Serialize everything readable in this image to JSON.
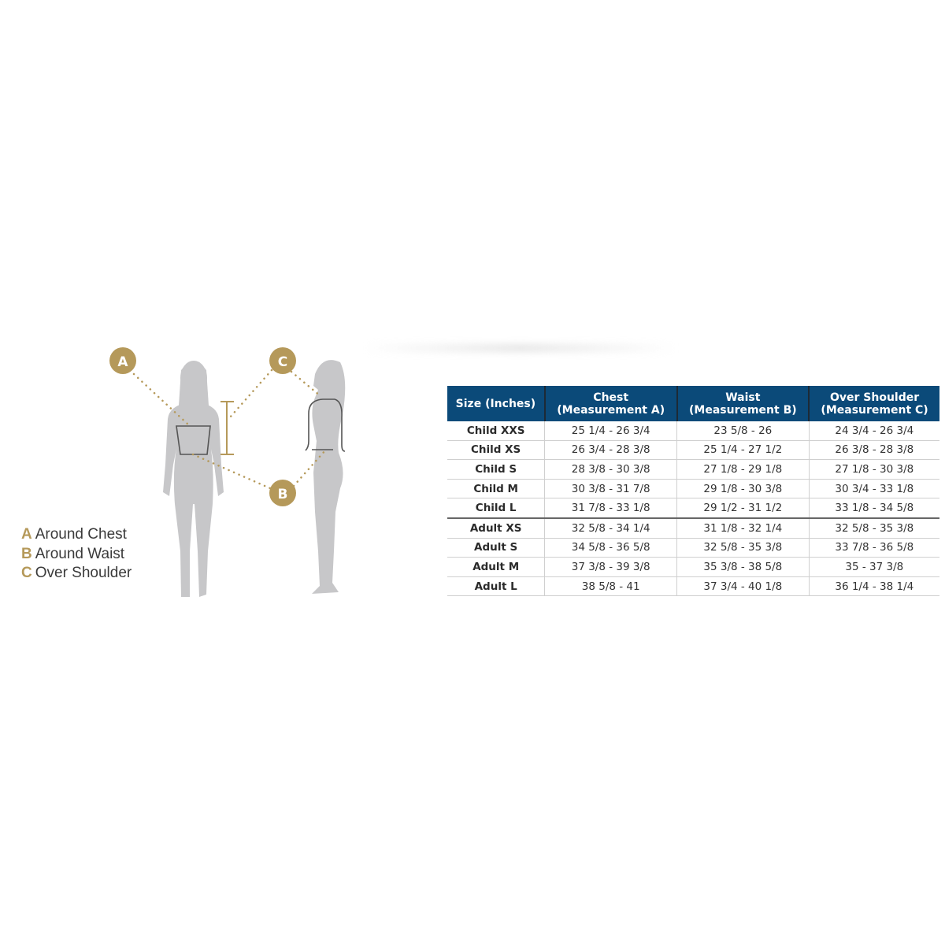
{
  "colors": {
    "header_bg": "#0b4a79",
    "accent_gold": "#b5995a",
    "silhouette": "#c7c7c9"
  },
  "diagram": {
    "markers": [
      "A",
      "B",
      "C"
    ]
  },
  "legend": [
    {
      "key": "A",
      "label": "Around Chest"
    },
    {
      "key": "B",
      "label": "Around Waist"
    },
    {
      "key": "C",
      "label": "Over Shoulder"
    }
  ],
  "table": {
    "headers": [
      {
        "line1": "Size (Inches)",
        "line2": ""
      },
      {
        "line1": "Chest",
        "line2": "(Measurement A)"
      },
      {
        "line1": "Waist",
        "line2": "(Measurement B)"
      },
      {
        "line1": "Over Shoulder",
        "line2": "(Measurement C)"
      }
    ],
    "rows": [
      [
        "Child XXS",
        "25 1/4 - 26 3/4",
        "23 5/8 - 26",
        "24 3/4 - 26 3/4"
      ],
      [
        "Child XS",
        "26 3/4 - 28 3/8",
        "25 1/4 - 27 1/2",
        "26 3/8 - 28 3/8"
      ],
      [
        "Child S",
        "28 3/8 - 30 3/8",
        "27 1/8 - 29 1/8",
        "27 1/8 - 30 3/8"
      ],
      [
        "Child M",
        "30 3/8 - 31 7/8",
        "29 1/8 - 30 3/8",
        "30 3/4 - 33 1/8"
      ],
      [
        "Child L",
        "31 7/8 - 33 1/8",
        "29 1/2 - 31 1/2",
        "33 1/8 - 34 5/8"
      ],
      [
        "Adult XS",
        "32 5/8 - 34 1/4",
        "31 1/8 - 32 1/4",
        "32 5/8 - 35 3/8"
      ],
      [
        "Adult S",
        "34 5/8 - 36 5/8",
        "32 5/8 - 35 3/8",
        "33 7/8 - 36 5/8"
      ],
      [
        "Adult M",
        "37 3/8 - 39 3/8",
        "35 3/8 - 38 5/8",
        "35 - 37 3/8"
      ],
      [
        "Adult L",
        "38 5/8 - 41",
        "37 3/4 - 40 1/8",
        "36 1/4 - 38 1/4"
      ]
    ]
  }
}
